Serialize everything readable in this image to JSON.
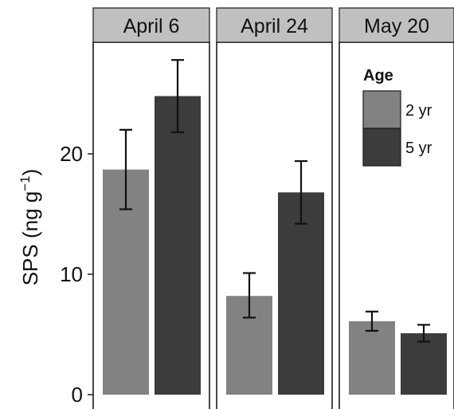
{
  "chart_data": {
    "type": "bar",
    "ylabel_main": "SPS (ng g",
    "ylabel_sup": "−1",
    "ylabel_close": ")",
    "ylim": [
      0,
      30
    ],
    "yticks": [
      0,
      10,
      20
    ],
    "grid": false,
    "legend": {
      "title": "Age",
      "placement": "top-right",
      "entries": [
        {
          "name": "2 yr",
          "color": "#828282"
        },
        {
          "name": "5 yr",
          "color": "#3c3c3c"
        }
      ]
    },
    "panels": [
      {
        "label": "April 6",
        "values": {
          "2 yr": 18.7,
          "5 yr": 24.8
        },
        "errors": {
          "2 yr": [
            15.4,
            22.0
          ],
          "5 yr": [
            21.8,
            27.8
          ]
        }
      },
      {
        "label": "April 24",
        "values": {
          "2 yr": 8.2,
          "5 yr": 16.8
        },
        "errors": {
          "2 yr": [
            6.4,
            10.1
          ],
          "5 yr": [
            14.2,
            19.4
          ]
        }
      },
      {
        "label": "May 20",
        "values": {
          "2 yr": 6.1,
          "5 yr": 5.1
        },
        "errors": {
          "2 yr": [
            5.3,
            6.9
          ],
          "5 yr": [
            4.4,
            5.8
          ]
        }
      }
    ]
  }
}
